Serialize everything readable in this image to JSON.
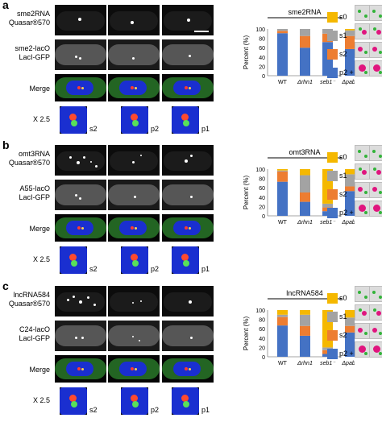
{
  "panels": [
    {
      "letter": "a",
      "row_labels": [
        "sme2RNA\nQuasar®570",
        "sme2-lacO\nLacI-GFP",
        "Merge",
        "X 2.5"
      ],
      "zoom_labels": [
        "s2",
        "p2",
        "p1"
      ],
      "chart_title": "sme2RNA"
    },
    {
      "letter": "b",
      "row_labels": [
        "omt3RNA\nQuasar®570",
        "A55-lacO\nLacI-GFP",
        "Merge",
        "X 2.5"
      ],
      "zoom_labels": [
        "s2",
        "p2",
        "p1"
      ],
      "chart_title": "omt3RNA"
    },
    {
      "letter": "c",
      "row_labels": [
        "lncRNA584\nQuasar®570",
        "C24-lacO\nLacI-GFP",
        "Merge",
        "X 2.5"
      ],
      "zoom_labels": [
        "s2",
        "p2",
        "p1"
      ],
      "chart_title": "lncRNA584"
    }
  ],
  "legend": [
    "s0",
    "s1",
    "s2",
    "p2 + p1"
  ],
  "colors": {
    "s0": "#f5b800",
    "s1": "#a3a3a3",
    "s2": "#ed7d31",
    "p2p1": "#4472c4"
  },
  "chart_data": [
    {
      "type": "bar",
      "title": "sme2RNA",
      "ylabel": "Percent (%)",
      "ylim": [
        0,
        100
      ],
      "categories": [
        "WT",
        "Δrhn1",
        "seb1⁻",
        "Δpab2"
      ],
      "series": [
        {
          "name": "p2 + p1",
          "values": [
            91,
            60,
            72,
            57
          ]
        },
        {
          "name": "s2",
          "values": [
            5,
            25,
            18,
            28
          ]
        },
        {
          "name": "s1",
          "values": [
            4,
            15,
            10,
            12
          ]
        },
        {
          "name": "s0",
          "values": [
            0,
            0,
            0,
            3
          ]
        }
      ]
    },
    {
      "type": "bar",
      "title": "omt3RNA",
      "ylabel": "Percent (%)",
      "ylim": [
        0,
        100
      ],
      "categories": [
        "WT",
        "Δrhn1",
        "seb1⁻",
        "Δpab2"
      ],
      "series": [
        {
          "name": "p2 + p1",
          "values": [
            73,
            30,
            10,
            53
          ]
        },
        {
          "name": "s2",
          "values": [
            22,
            20,
            8,
            10
          ]
        },
        {
          "name": "s1",
          "values": [
            2,
            37,
            8,
            26
          ]
        },
        {
          "name": "s0",
          "values": [
            3,
            13,
            74,
            11
          ]
        }
      ]
    },
    {
      "type": "bar",
      "title": "lncRNA584",
      "ylabel": "Percent (%)",
      "ylim": [
        0,
        100
      ],
      "categories": [
        "WT",
        "Δrhn1",
        "seb1⁻",
        "Δpab2"
      ],
      "series": [
        {
          "name": "p2 + p1",
          "values": [
            67,
            45,
            6,
            52
          ]
        },
        {
          "name": "s2",
          "values": [
            18,
            21,
            8,
            14
          ]
        },
        {
          "name": "s1",
          "values": [
            5,
            24,
            6,
            18
          ]
        },
        {
          "name": "s0",
          "values": [
            10,
            10,
            80,
            16
          ]
        }
      ]
    }
  ]
}
